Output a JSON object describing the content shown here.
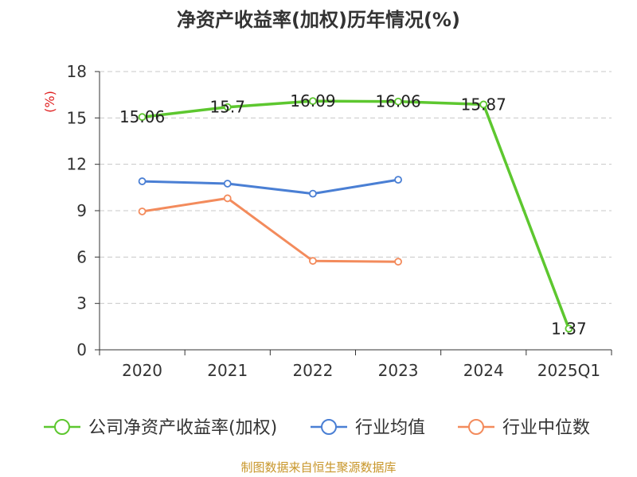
{
  "chart_data": {
    "type": "line",
    "title": "净资产收益率(加权)历年情况(%)",
    "ylabel": "(%)",
    "xlabel": "",
    "categories": [
      "2020",
      "2021",
      "2022",
      "2023",
      "2024",
      "2025Q1"
    ],
    "ylim": [
      0,
      18
    ],
    "yticks": [
      0,
      3,
      6,
      9,
      12,
      15,
      18
    ],
    "grid": true,
    "legend_position": "bottom",
    "series": [
      {
        "name": "公司净资产收益率(加权)",
        "color": "#5dc72f",
        "values": [
          15.06,
          15.7,
          16.09,
          16.06,
          15.87,
          1.37
        ],
        "labels": [
          "15.06",
          "15.7",
          "16.09",
          "16.06",
          "15.87",
          "1.37"
        ]
      },
      {
        "name": "行业均值",
        "color": "#4a7fd4",
        "values": [
          10.9,
          10.75,
          10.1,
          11.0,
          null,
          null
        ]
      },
      {
        "name": "行业中位数",
        "color": "#f38b5c",
        "values": [
          8.95,
          9.8,
          5.75,
          5.7,
          null,
          null
        ]
      }
    ]
  },
  "source": "制图数据来自恒生聚源数据库"
}
